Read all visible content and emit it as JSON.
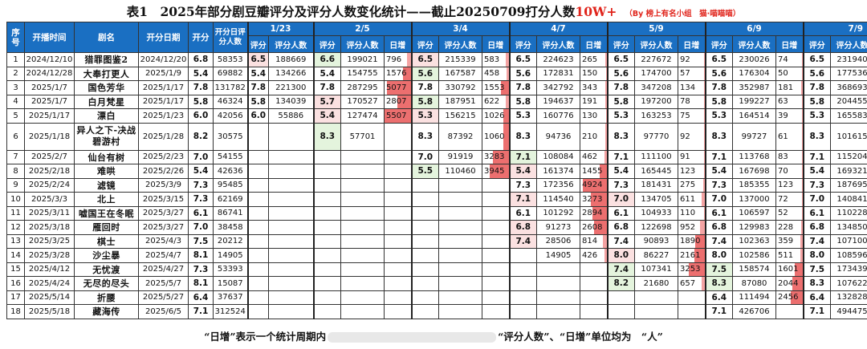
{
  "title": {
    "main": "表1　2025年部分剧豆瓣评分及评分人数变化统计——截止20250709打分人数",
    "highlight": "10W+",
    "note": "（By 榜上有名小组　猫·喵喵喵）"
  },
  "headers": {
    "seq": "序号",
    "start": "开播时间",
    "name": "剧名",
    "open": "开分日期",
    "open_score": "开分",
    "open_count": "开分日评分人数",
    "score": "评分",
    "count": "评分人数",
    "inc": "日增"
  },
  "periods": [
    "1/23",
    "2/5",
    "3/4",
    "4/7",
    "5/9",
    "6/9",
    "7/9"
  ],
  "rows": [
    {
      "seq": "1",
      "start": "2024/12/10",
      "name": "猎罪图鉴2",
      "open": "2024/12/20",
      "os": "6.8",
      "oc": "58353",
      "d": [
        [
          "6.5",
          "188669",
          ""
        ],
        [
          "6.6",
          "199021",
          "796"
        ],
        [
          "6.5",
          "215339",
          "583"
        ],
        [
          "6.5",
          "224623",
          "265"
        ],
        [
          "6.5",
          "227672",
          "92"
        ],
        [
          "6.5",
          "230026",
          "74"
        ],
        [
          "6.5",
          "231940",
          "64"
        ]
      ]
    },
    {
      "seq": "2",
      "start": "2024/12/28",
      "name": "大奉打更人",
      "open": "2025/1/9",
      "os": "5.4",
      "oc": "69882",
      "d": [
        [
          "5.4",
          "134266",
          ""
        ],
        [
          "5.4",
          "154755",
          "1576"
        ],
        [
          "5.6",
          "167587",
          "458"
        ],
        [
          "5.6",
          "172831",
          "150"
        ],
        [
          "5.6",
          "174700",
          "57"
        ],
        [
          "5.6",
          "176304",
          "50"
        ],
        [
          "5.6",
          "177536",
          "41"
        ]
      ]
    },
    {
      "seq": "3",
      "start": "2025/1/7",
      "name": "国色芳华",
      "open": "2025/1/17",
      "os": "7.8",
      "oc": "131782",
      "d": [
        [
          "7.8",
          "221300",
          ""
        ],
        [
          "7.8",
          "287295",
          "5077"
        ],
        [
          "7.8",
          "330792",
          "1553"
        ],
        [
          "7.8",
          "342792",
          "343"
        ],
        [
          "7.8",
          "347208",
          "134"
        ],
        [
          "7.8",
          "352987",
          "181"
        ],
        [
          "7.8",
          "368693",
          "524"
        ]
      ]
    },
    {
      "seq": "4",
      "start": "2025/1/7",
      "name": "白月梵星",
      "open": "2025/1/17",
      "os": "5.8",
      "oc": "46324",
      "d": [
        [
          "5.8",
          "134039",
          ""
        ],
        [
          "5.7",
          "170527",
          "2807"
        ],
        [
          "5.8",
          "187951",
          "622"
        ],
        [
          "5.8",
          "194637",
          "191"
        ],
        [
          "5.8",
          "197200",
          "78"
        ],
        [
          "5.8",
          "199227",
          "63"
        ],
        [
          "5.8",
          "204455",
          "174"
        ]
      ]
    },
    {
      "seq": "5",
      "start": "2025/1/17",
      "name": "漂白",
      "open": "2025/1/23",
      "os": "6.0",
      "oc": "42056",
      "d": [
        [
          "6.0",
          "55886",
          ""
        ],
        [
          "5.4",
          "127474",
          "5507"
        ],
        [
          "5.3",
          "156215",
          "1026"
        ],
        [
          "5.3",
          "160776",
          "130"
        ],
        [
          "5.3",
          "163253",
          "75"
        ],
        [
          "5.3",
          "164514",
          "39"
        ],
        [
          "5.3",
          "165583",
          "36"
        ]
      ]
    },
    {
      "seq": "6",
      "start": "2025/1/18",
      "name": "异人之下-决战碧游村",
      "open": "2025/1/28",
      "os": "8.2",
      "oc": "30575",
      "d": [
        [
          "",
          "",
          ""
        ],
        [
          "8.3",
          "57701",
          ""
        ],
        [
          "8.3",
          "87392",
          "1060"
        ],
        [
          "8.3",
          "94736",
          "210"
        ],
        [
          "8.3",
          "97770",
          "92"
        ],
        [
          "8.3",
          "99727",
          "61"
        ],
        [
          "8.3",
          "101615",
          "63"
        ]
      ]
    },
    {
      "seq": "7",
      "start": "2025/2/7",
      "name": "仙台有树",
      "open": "2025/2/23",
      "os": "7.0",
      "oc": "54155",
      "d": [
        [
          "",
          "",
          ""
        ],
        [
          "",
          "",
          ""
        ],
        [
          "7.0",
          "91919",
          "3283"
        ],
        [
          "7.1",
          "108084",
          "462"
        ],
        [
          "7.1",
          "111100",
          "91"
        ],
        [
          "7.1",
          "113768",
          "83"
        ],
        [
          "7.1",
          "115204",
          "48"
        ]
      ]
    },
    {
      "seq": "8",
      "start": "2025/2/18",
      "name": "难哄",
      "open": "2025/2/26",
      "os": "5.4",
      "oc": "42636",
      "d": [
        [
          "",
          "",
          ""
        ],
        [
          "",
          "",
          ""
        ],
        [
          "5.5",
          "110460",
          "3945"
        ],
        [
          "5.4",
          "161374",
          "1455"
        ],
        [
          "5.4",
          "165445",
          "123"
        ],
        [
          "5.4",
          "167698",
          "70"
        ],
        [
          "5.4",
          "169321",
          "54"
        ]
      ]
    },
    {
      "seq": "9",
      "start": "2025/2/24",
      "name": "滤镜",
      "open": "2025/3/9",
      "os": "7.3",
      "oc": "95485",
      "d": [
        [
          "",
          "",
          ""
        ],
        [
          "",
          "",
          ""
        ],
        [
          "",
          "",
          ""
        ],
        [
          "7.3",
          "172356",
          "4924"
        ],
        [
          "7.3",
          "181431",
          "275"
        ],
        [
          "7.3",
          "185355",
          "123"
        ],
        [
          "7.3",
          "187695",
          "78"
        ]
      ]
    },
    {
      "seq": "10",
      "start": "2025/3/3",
      "name": "北上",
      "open": "2025/3/15",
      "os": "7.3",
      "oc": "62169",
      "d": [
        [
          "",
          "",
          ""
        ],
        [
          "",
          "",
          ""
        ],
        [
          "",
          "",
          ""
        ],
        [
          "7.1",
          "114540",
          "3273"
        ],
        [
          "7.0",
          "134705",
          "611"
        ],
        [
          "7.0",
          "137000",
          "72"
        ],
        [
          "7.0",
          "140841",
          "128"
        ]
      ]
    },
    {
      "seq": "11",
      "start": "2025/3/11",
      "name": "嘘国王在冬眠",
      "open": "2025/3/27",
      "os": "6.1",
      "oc": "86741",
      "d": [
        [
          "",
          "",
          ""
        ],
        [
          "",
          "",
          ""
        ],
        [
          "",
          "",
          ""
        ],
        [
          "6.1",
          "101292",
          "2894"
        ],
        [
          "6.1",
          "104933",
          "110"
        ],
        [
          "6.1",
          "106597",
          "52"
        ],
        [
          "6.1",
          "110228",
          "121"
        ]
      ]
    },
    {
      "seq": "12",
      "start": "2025/3/18",
      "name": "雁回时",
      "open": "2025/3/27",
      "os": "7.0",
      "oc": "38458",
      "d": [
        [
          "",
          "",
          ""
        ],
        [
          "",
          "",
          ""
        ],
        [
          "",
          "",
          ""
        ],
        [
          "6.8",
          "91273",
          "2608"
        ],
        [
          "6.8",
          "122698",
          "952"
        ],
        [
          "6.8",
          "129983",
          "228"
        ],
        [
          "6.8",
          "134850",
          "164"
        ]
      ]
    },
    {
      "seq": "13",
      "start": "2025/3/25",
      "name": "棋士",
      "open": "2025/4/3",
      "os": "7.5",
      "oc": "20212",
      "d": [
        [
          "",
          "",
          ""
        ],
        [
          "",
          "",
          ""
        ],
        [
          "",
          "",
          ""
        ],
        [
          "7.4",
          "28506",
          "814"
        ],
        [
          "7.4",
          "90893",
          "1890"
        ],
        [
          "7.4",
          "102363",
          "359"
        ],
        [
          "7.4",
          "107100",
          "158"
        ]
      ]
    },
    {
      "seq": "14",
      "start": "2025/3/28",
      "name": "沙尘暴",
      "open": "2025/4/7",
      "os": "8.1",
      "oc": "14905",
      "d": [
        [
          "",
          "",
          ""
        ],
        [
          "",
          "",
          ""
        ],
        [
          "",
          "",
          ""
        ],
        [
          "",
          "14905",
          "426"
        ],
        [
          "8.0",
          "86227",
          "2161"
        ],
        [
          "8.0",
          "102586",
          "511"
        ],
        [
          "8.0",
          "108596",
          "200"
        ]
      ]
    },
    {
      "seq": "15",
      "start": "2025/4/12",
      "name": "无忧渡",
      "open": "2025/4/27",
      "os": "7.3",
      "oc": "53393",
      "d": [
        [
          "",
          "",
          ""
        ],
        [
          "",
          "",
          ""
        ],
        [
          "",
          "",
          ""
        ],
        [
          "",
          "",
          ""
        ],
        [
          "7.4",
          "107341",
          "3253"
        ],
        [
          "7.5",
          "158574",
          "1601"
        ],
        [
          "7.5",
          "173439",
          "496"
        ]
      ]
    },
    {
      "seq": "16",
      "start": "2025/4/24",
      "name": "无尽的尽头",
      "open": "2025/5/7",
      "os": "8.1",
      "oc": "15087",
      "d": [
        [
          "",
          "",
          ""
        ],
        [
          "",
          "",
          ""
        ],
        [
          "",
          "",
          ""
        ],
        [
          "",
          "",
          ""
        ],
        [
          "8.2",
          "21680",
          "657"
        ],
        [
          "8.3",
          "87080",
          "2044"
        ],
        [
          "8.3",
          "107622",
          "685"
        ]
      ]
    },
    {
      "seq": "17",
      "start": "2025/5/14",
      "name": "折腰",
      "open": "2025/5/27",
      "os": "6.4",
      "oc": "37637",
      "d": [
        [
          "",
          "",
          ""
        ],
        [
          "",
          "",
          ""
        ],
        [
          "",
          "",
          ""
        ],
        [
          "",
          "",
          ""
        ],
        [
          "",
          "",
          ""
        ],
        [
          "6.4",
          "111494",
          "2456"
        ],
        [
          "6.4",
          "132828",
          "711"
        ]
      ]
    },
    {
      "seq": "18",
      "start": "2025/5/18",
      "name": "藏海传",
      "open": "2025/6/5",
      "os": "7.1",
      "oc": "312524",
      "d": [
        [
          "",
          "",
          ""
        ],
        [
          "",
          "",
          ""
        ],
        [
          "",
          "",
          ""
        ],
        [
          "",
          "",
          ""
        ],
        [
          "",
          "",
          ""
        ],
        [
          "7.1",
          "426706",
          ""
        ],
        [
          "7.1",
          "494475",
          "2259"
        ]
      ]
    }
  ],
  "footer": {
    "left": "“日增”表示一个统计周期内",
    "middle": "“评分人数”、“日增”单位均为",
    "right": "“人”"
  },
  "colors": {
    "header": "#1a6fc2",
    "increase": "#f4a3a3",
    "increase_strong": "#ec6f6f",
    "score_up": "#e4f4dd",
    "score_down": "#fbe1e1",
    "title_accent": "#e0241b"
  }
}
